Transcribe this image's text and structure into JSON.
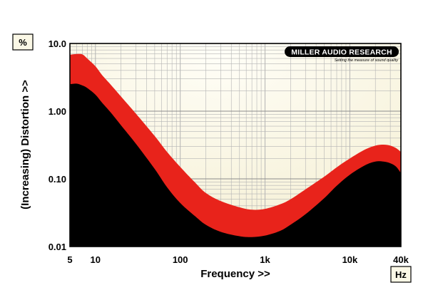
{
  "chart_data": {
    "type": "area",
    "xlabel": "Frequency >>",
    "ylabel": "(Increasing) Distortion >>",
    "x_unit": "Hz",
    "y_unit": "%",
    "x_scale": "log",
    "y_scale": "log",
    "xlim": [
      5,
      40000
    ],
    "ylim": [
      0.01,
      10
    ],
    "grid": true,
    "x_ticks": [
      {
        "value": 5,
        "label": "5"
      },
      {
        "value": 10,
        "label": "10"
      },
      {
        "value": 100,
        "label": "100"
      },
      {
        "value": 1000,
        "label": "1k"
      },
      {
        "value": 10000,
        "label": "10k"
      },
      {
        "value": 40000,
        "label": "40k"
      }
    ],
    "y_ticks": [
      {
        "value": 10,
        "label": "10.0"
      },
      {
        "value": 1,
        "label": "1.00"
      },
      {
        "value": 0.1,
        "label": "0.10"
      },
      {
        "value": 0.01,
        "label": "0.01"
      }
    ],
    "x": [
      5,
      6,
      7,
      8,
      10,
      12,
      15,
      20,
      30,
      50,
      70,
      100,
      150,
      200,
      300,
      500,
      700,
      1000,
      1500,
      2000,
      3000,
      5000,
      7000,
      10000,
      15000,
      20000,
      25000,
      30000,
      35000,
      40000
    ],
    "series": [
      {
        "color": "#e8231b",
        "values": [
          6.8,
          7.0,
          6.9,
          6.0,
          4.6,
          3.4,
          2.5,
          1.65,
          0.92,
          0.43,
          0.25,
          0.15,
          0.088,
          0.062,
          0.047,
          0.038,
          0.035,
          0.036,
          0.042,
          0.05,
          0.07,
          0.108,
          0.148,
          0.2,
          0.27,
          0.31,
          0.32,
          0.31,
          0.285,
          0.25
        ]
      },
      {
        "color": "#000000",
        "values": [
          2.5,
          2.55,
          2.4,
          2.2,
          1.75,
          1.33,
          0.97,
          0.62,
          0.33,
          0.14,
          0.075,
          0.044,
          0.028,
          0.021,
          0.0165,
          0.0142,
          0.0138,
          0.0145,
          0.017,
          0.021,
          0.03,
          0.052,
          0.079,
          0.115,
          0.158,
          0.18,
          0.18,
          0.17,
          0.152,
          0.122
        ]
      }
    ]
  },
  "branding": {
    "logo_text": "MILLER AUDIO RESEARCH",
    "tagline": "Setting the measure of sound quality"
  },
  "colors": {
    "plot_background": "#fbf8e6",
    "plot_glow": "#fffef7",
    "grid_line": "#b4b4b4"
  }
}
